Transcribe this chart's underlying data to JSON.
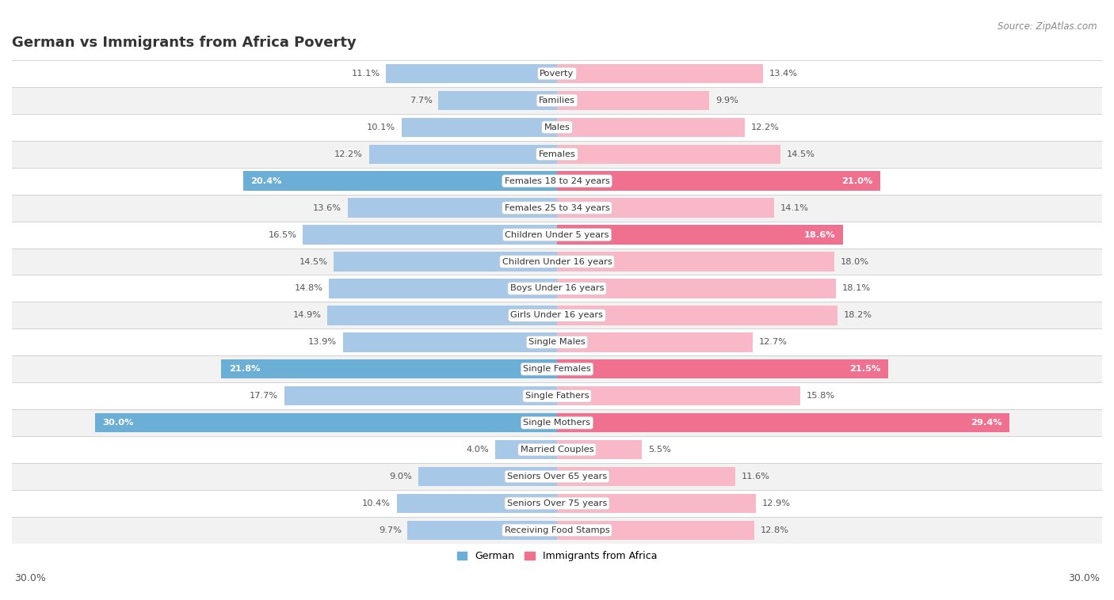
{
  "title": "German vs Immigrants from Africa Poverty",
  "source": "Source: ZipAtlas.com",
  "categories": [
    "Poverty",
    "Families",
    "Males",
    "Females",
    "Females 18 to 24 years",
    "Females 25 to 34 years",
    "Children Under 5 years",
    "Children Under 16 years",
    "Boys Under 16 years",
    "Girls Under 16 years",
    "Single Males",
    "Single Females",
    "Single Fathers",
    "Single Mothers",
    "Married Couples",
    "Seniors Over 65 years",
    "Seniors Over 75 years",
    "Receiving Food Stamps"
  ],
  "german_values": [
    11.1,
    7.7,
    10.1,
    12.2,
    20.4,
    13.6,
    16.5,
    14.5,
    14.8,
    14.9,
    13.9,
    21.8,
    17.7,
    30.0,
    4.0,
    9.0,
    10.4,
    9.7
  ],
  "africa_values": [
    13.4,
    9.9,
    12.2,
    14.5,
    21.0,
    14.1,
    18.6,
    18.0,
    18.1,
    18.2,
    12.7,
    21.5,
    15.8,
    29.4,
    5.5,
    11.6,
    12.9,
    12.8
  ],
  "max_val": 30.0,
  "german_color_normal": "#A8C8E8",
  "german_color_highlight": "#6BAED6",
  "africa_color_normal": "#F9B8C8",
  "africa_color_highlight": "#F07090",
  "row_colors": [
    "#FFFFFF",
    "#F2F2F2"
  ],
  "title_color": "#333333",
  "source_color": "#888888",
  "label_color": "#444444",
  "value_color_normal": "#555555",
  "value_color_highlight": "#FFFFFF",
  "highlight_threshold": 18.5,
  "bottom_axis_label": "30.0%"
}
